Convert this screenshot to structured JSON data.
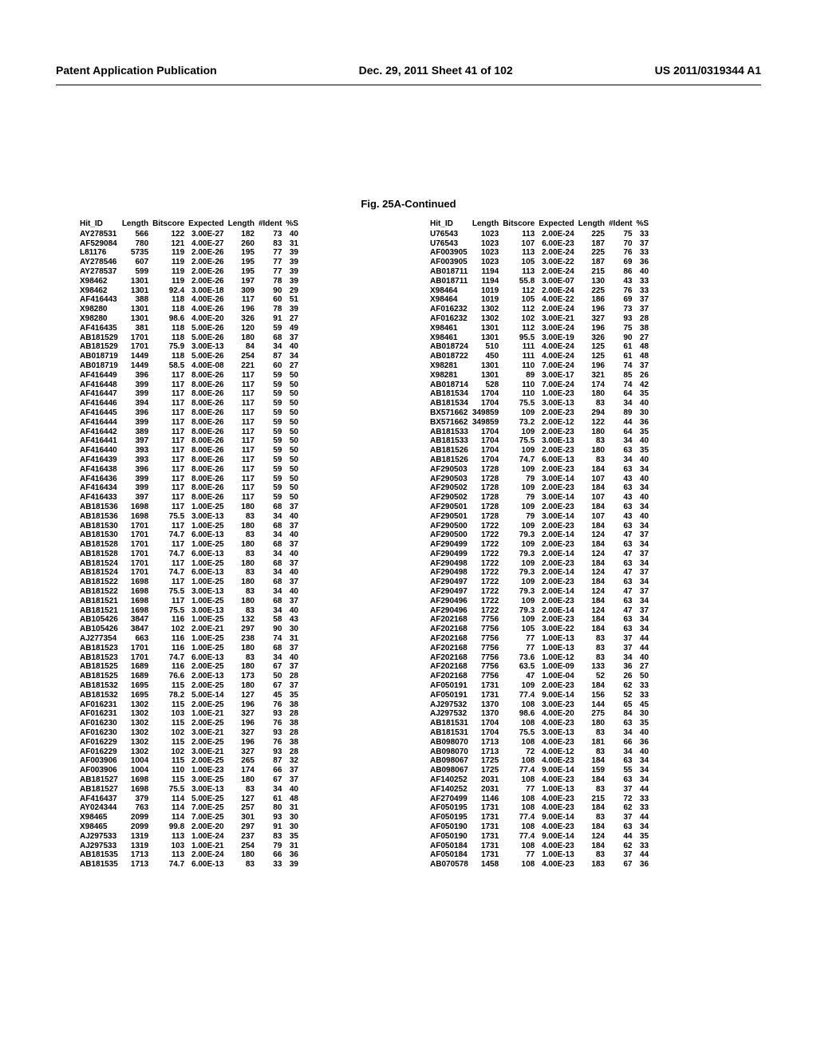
{
  "header": {
    "left": "Patent Application Publication",
    "mid": "Dec. 29, 2011  Sheet 41 of 102",
    "right": "US 2011/0319344 A1"
  },
  "caption": "Fig. 25A-Continued",
  "columns": [
    "Hit_ID",
    "Length",
    "Bitscore",
    "Expected",
    "Length",
    "#Ident",
    "%S"
  ],
  "left_rows": [
    [
      "AY278531",
      "566",
      "122",
      "3.00E-27",
      "182",
      "73",
      "40"
    ],
    [
      "AF529084",
      "780",
      "121",
      "4.00E-27",
      "260",
      "83",
      "31"
    ],
    [
      "L81176",
      "5735",
      "119",
      "2.00E-26",
      "195",
      "77",
      "39"
    ],
    [
      "AY278546",
      "607",
      "119",
      "2.00E-26",
      "195",
      "77",
      "39"
    ],
    [
      "AY278537",
      "599",
      "119",
      "2.00E-26",
      "195",
      "77",
      "39"
    ],
    [
      "X98462",
      "1301",
      "119",
      "2.00E-26",
      "197",
      "78",
      "39"
    ],
    [
      "X98462",
      "1301",
      "92.4",
      "3.00E-18",
      "309",
      "90",
      "29"
    ],
    [
      "AF416443",
      "388",
      "118",
      "4.00E-26",
      "117",
      "60",
      "51"
    ],
    [
      "X98280",
      "1301",
      "118",
      "4.00E-26",
      "196",
      "78",
      "39"
    ],
    [
      "X98280",
      "1301",
      "98.6",
      "4.00E-20",
      "326",
      "91",
      "27"
    ],
    [
      "AF416435",
      "381",
      "118",
      "5.00E-26",
      "120",
      "59",
      "49"
    ],
    [
      "AB181529",
      "1701",
      "118",
      "5.00E-26",
      "180",
      "68",
      "37"
    ],
    [
      "AB181529",
      "1701",
      "75.9",
      "3.00E-13",
      "84",
      "34",
      "40"
    ],
    [
      "AB018719",
      "1449",
      "118",
      "5.00E-26",
      "254",
      "87",
      "34"
    ],
    [
      "AB018719",
      "1449",
      "58.5",
      "4.00E-08",
      "221",
      "60",
      "27"
    ],
    [
      "AF416449",
      "396",
      "117",
      "8.00E-26",
      "117",
      "59",
      "50"
    ],
    [
      "AF416448",
      "399",
      "117",
      "8.00E-26",
      "117",
      "59",
      "50"
    ],
    [
      "AF416447",
      "399",
      "117",
      "8.00E-26",
      "117",
      "59",
      "50"
    ],
    [
      "AF416446",
      "394",
      "117",
      "8.00E-26",
      "117",
      "59",
      "50"
    ],
    [
      "AF416445",
      "396",
      "117",
      "8.00E-26",
      "117",
      "59",
      "50"
    ],
    [
      "AF416444",
      "399",
      "117",
      "8.00E-26",
      "117",
      "59",
      "50"
    ],
    [
      "AF416442",
      "389",
      "117",
      "8.00E-26",
      "117",
      "59",
      "50"
    ],
    [
      "AF416441",
      "397",
      "117",
      "8.00E-26",
      "117",
      "59",
      "50"
    ],
    [
      "AF416440",
      "393",
      "117",
      "8.00E-26",
      "117",
      "59",
      "50"
    ],
    [
      "AF416439",
      "393",
      "117",
      "8.00E-26",
      "117",
      "59",
      "50"
    ],
    [
      "AF416438",
      "396",
      "117",
      "8.00E-26",
      "117",
      "59",
      "50"
    ],
    [
      "AF416436",
      "399",
      "117",
      "8.00E-26",
      "117",
      "59",
      "50"
    ],
    [
      "AF416434",
      "399",
      "117",
      "8.00E-26",
      "117",
      "59",
      "50"
    ],
    [
      "AF416433",
      "397",
      "117",
      "8.00E-26",
      "117",
      "59",
      "50"
    ],
    [
      "AB181536",
      "1698",
      "117",
      "1.00E-25",
      "180",
      "68",
      "37"
    ],
    [
      "AB181536",
      "1698",
      "75.5",
      "3.00E-13",
      "83",
      "34",
      "40"
    ],
    [
      "AB181530",
      "1701",
      "117",
      "1.00E-25",
      "180",
      "68",
      "37"
    ],
    [
      "AB181530",
      "1701",
      "74.7",
      "6.00E-13",
      "83",
      "34",
      "40"
    ],
    [
      "AB181528",
      "1701",
      "117",
      "1.00E-25",
      "180",
      "68",
      "37"
    ],
    [
      "AB181528",
      "1701",
      "74.7",
      "6.00E-13",
      "83",
      "34",
      "40"
    ],
    [
      "AB181524",
      "1701",
      "117",
      "1.00E-25",
      "180",
      "68",
      "37"
    ],
    [
      "AB181524",
      "1701",
      "74.7",
      "6.00E-13",
      "83",
      "34",
      "40"
    ],
    [
      "AB181522",
      "1698",
      "117",
      "1.00E-25",
      "180",
      "68",
      "37"
    ],
    [
      "AB181522",
      "1698",
      "75.5",
      "3.00E-13",
      "83",
      "34",
      "40"
    ],
    [
      "AB181521",
      "1698",
      "117",
      "1.00E-25",
      "180",
      "68",
      "37"
    ],
    [
      "AB181521",
      "1698",
      "75.5",
      "3.00E-13",
      "83",
      "34",
      "40"
    ],
    [
      "AB105426",
      "3847",
      "116",
      "1.00E-25",
      "132",
      "58",
      "43"
    ],
    [
      "AB105426",
      "3847",
      "102",
      "2.00E-21",
      "297",
      "90",
      "30"
    ],
    [
      "AJ277354",
      "663",
      "116",
      "1.00E-25",
      "238",
      "74",
      "31"
    ],
    [
      "AB181523",
      "1701",
      "116",
      "1.00E-25",
      "180",
      "68",
      "37"
    ],
    [
      "AB181523",
      "1701",
      "74.7",
      "6.00E-13",
      "83",
      "34",
      "40"
    ],
    [
      "AB181525",
      "1689",
      "116",
      "2.00E-25",
      "180",
      "67",
      "37"
    ],
    [
      "AB181525",
      "1689",
      "76.6",
      "2.00E-13",
      "173",
      "50",
      "28"
    ],
    [
      "AB181532",
      "1695",
      "115",
      "2.00E-25",
      "180",
      "67",
      "37"
    ],
    [
      "AB181532",
      "1695",
      "78.2",
      "5.00E-14",
      "127",
      "45",
      "35"
    ],
    [
      "AF016231",
      "1302",
      "115",
      "2.00E-25",
      "196",
      "76",
      "38"
    ],
    [
      "AF016231",
      "1302",
      "103",
      "1.00E-21",
      "327",
      "93",
      "28"
    ],
    [
      "AF016230",
      "1302",
      "115",
      "2.00E-25",
      "196",
      "76",
      "38"
    ],
    [
      "AF016230",
      "1302",
      "102",
      "3.00E-21",
      "327",
      "93",
      "28"
    ],
    [
      "AF016229",
      "1302",
      "115",
      "2.00E-25",
      "196",
      "76",
      "38"
    ],
    [
      "AF016229",
      "1302",
      "102",
      "3.00E-21",
      "327",
      "93",
      "28"
    ],
    [
      "AF003906",
      "1004",
      "115",
      "2.00E-25",
      "265",
      "87",
      "32"
    ],
    [
      "AF003906",
      "1004",
      "110",
      "1.00E-23",
      "174",
      "66",
      "37"
    ],
    [
      "AB181527",
      "1698",
      "115",
      "3.00E-25",
      "180",
      "67",
      "37"
    ],
    [
      "AB181527",
      "1698",
      "75.5",
      "3.00E-13",
      "83",
      "34",
      "40"
    ],
    [
      "AF416437",
      "379",
      "114",
      "5.00E-25",
      "127",
      "61",
      "48"
    ],
    [
      "AY024344",
      "763",
      "114",
      "7.00E-25",
      "257",
      "80",
      "31"
    ],
    [
      "X98465",
      "2099",
      "114",
      "7.00E-25",
      "301",
      "93",
      "30"
    ],
    [
      "X98465",
      "2099",
      "99.8",
      "2.00E-20",
      "297",
      "91",
      "30"
    ],
    [
      "AJ297533",
      "1319",
      "113",
      "1.00E-24",
      "237",
      "83",
      "35"
    ],
    [
      "AJ297533",
      "1319",
      "103",
      "1.00E-21",
      "254",
      "79",
      "31"
    ],
    [
      "AB181535",
      "1713",
      "113",
      "2.00E-24",
      "180",
      "66",
      "36"
    ],
    [
      "AB181535",
      "1713",
      "74.7",
      "6.00E-13",
      "83",
      "33",
      "39"
    ]
  ],
  "right_rows": [
    [
      "U76543",
      "1023",
      "113",
      "2.00E-24",
      "225",
      "75",
      "33"
    ],
    [
      "U76543",
      "1023",
      "107",
      "6.00E-23",
      "187",
      "70",
      "37"
    ],
    [
      "AF003905",
      "1023",
      "113",
      "2.00E-24",
      "225",
      "76",
      "33"
    ],
    [
      "AF003905",
      "1023",
      "105",
      "3.00E-22",
      "187",
      "69",
      "36"
    ],
    [
      "AB018711",
      "1194",
      "113",
      "2.00E-24",
      "215",
      "86",
      "40"
    ],
    [
      "AB018711",
      "1194",
      "55.8",
      "3.00E-07",
      "130",
      "43",
      "33"
    ],
    [
      "X98464",
      "1019",
      "112",
      "2.00E-24",
      "225",
      "76",
      "33"
    ],
    [
      "X98464",
      "1019",
      "105",
      "4.00E-22",
      "186",
      "69",
      "37"
    ],
    [
      "AF016232",
      "1302",
      "112",
      "2.00E-24",
      "196",
      "73",
      "37"
    ],
    [
      "AF016232",
      "1302",
      "102",
      "3.00E-21",
      "327",
      "93",
      "28"
    ],
    [
      "X98461",
      "1301",
      "112",
      "3.00E-24",
      "196",
      "75",
      "38"
    ],
    [
      "X98461",
      "1301",
      "95.5",
      "3.00E-19",
      "326",
      "90",
      "27"
    ],
    [
      "AB018724",
      "510",
      "111",
      "4.00E-24",
      "125",
      "61",
      "48"
    ],
    [
      "AB018722",
      "450",
      "111",
      "4.00E-24",
      "125",
      "61",
      "48"
    ],
    [
      "X98281",
      "1301",
      "110",
      "7.00E-24",
      "196",
      "74",
      "37"
    ],
    [
      "X98281",
      "1301",
      "89",
      "3.00E-17",
      "321",
      "85",
      "26"
    ],
    [
      "AB018714",
      "528",
      "110",
      "7.00E-24",
      "174",
      "74",
      "42"
    ],
    [
      "AB181534",
      "1704",
      "110",
      "1.00E-23",
      "180",
      "64",
      "35"
    ],
    [
      "AB181534",
      "1704",
      "75.5",
      "3.00E-13",
      "83",
      "34",
      "40"
    ],
    [
      "BX571662",
      "349859",
      "109",
      "2.00E-23",
      "294",
      "89",
      "30"
    ],
    [
      "BX571662",
      "349859",
      "73.2",
      "2.00E-12",
      "122",
      "44",
      "36"
    ],
    [
      "AB181533",
      "1704",
      "109",
      "2.00E-23",
      "180",
      "64",
      "35"
    ],
    [
      "AB181533",
      "1704",
      "75.5",
      "3.00E-13",
      "83",
      "34",
      "40"
    ],
    [
      "AB181526",
      "1704",
      "109",
      "2.00E-23",
      "180",
      "63",
      "35"
    ],
    [
      "AB181526",
      "1704",
      "74.7",
      "6.00E-13",
      "83",
      "34",
      "40"
    ],
    [
      "AF290503",
      "1728",
      "109",
      "2.00E-23",
      "184",
      "63",
      "34"
    ],
    [
      "AF290503",
      "1728",
      "79",
      "3.00E-14",
      "107",
      "43",
      "40"
    ],
    [
      "AF290502",
      "1728",
      "109",
      "2.00E-23",
      "184",
      "63",
      "34"
    ],
    [
      "AF290502",
      "1728",
      "79",
      "3.00E-14",
      "107",
      "43",
      "40"
    ],
    [
      "AF290501",
      "1728",
      "109",
      "2.00E-23",
      "184",
      "63",
      "34"
    ],
    [
      "AF290501",
      "1728",
      "79",
      "3.00E-14",
      "107",
      "43",
      "40"
    ],
    [
      "AF290500",
      "1722",
      "109",
      "2.00E-23",
      "184",
      "63",
      "34"
    ],
    [
      "AF290500",
      "1722",
      "79.3",
      "2.00E-14",
      "124",
      "47",
      "37"
    ],
    [
      "AF290499",
      "1722",
      "109",
      "2.00E-23",
      "184",
      "63",
      "34"
    ],
    [
      "AF290499",
      "1722",
      "79.3",
      "2.00E-14",
      "124",
      "47",
      "37"
    ],
    [
      "AF290498",
      "1722",
      "109",
      "2.00E-23",
      "184",
      "63",
      "34"
    ],
    [
      "AF290498",
      "1722",
      "79.3",
      "2.00E-14",
      "124",
      "47",
      "37"
    ],
    [
      "AF290497",
      "1722",
      "109",
      "2.00E-23",
      "184",
      "63",
      "34"
    ],
    [
      "AF290497",
      "1722",
      "79.3",
      "2.00E-14",
      "124",
      "47",
      "37"
    ],
    [
      "AF290496",
      "1722",
      "109",
      "2.00E-23",
      "184",
      "63",
      "34"
    ],
    [
      "AF290496",
      "1722",
      "79.3",
      "2.00E-14",
      "124",
      "47",
      "37"
    ],
    [
      "AF202168",
      "7756",
      "109",
      "2.00E-23",
      "184",
      "63",
      "34"
    ],
    [
      "AF202168",
      "7756",
      "105",
      "3.00E-22",
      "184",
      "63",
      "34"
    ],
    [
      "AF202168",
      "7756",
      "77",
      "1.00E-13",
      "83",
      "37",
      "44"
    ],
    [
      "AF202168",
      "7756",
      "77",
      "1.00E-13",
      "83",
      "37",
      "44"
    ],
    [
      "AF202168",
      "7756",
      "73.6",
      "1.00E-12",
      "83",
      "34",
      "40"
    ],
    [
      "AF202168",
      "7756",
      "63.5",
      "1.00E-09",
      "133",
      "36",
      "27"
    ],
    [
      "AF202168",
      "7756",
      "47",
      "1.00E-04",
      "52",
      "26",
      "50"
    ],
    [
      "AF050191",
      "1731",
      "109",
      "2.00E-23",
      "184",
      "62",
      "33"
    ],
    [
      "AF050191",
      "1731",
      "77.4",
      "9.00E-14",
      "156",
      "52",
      "33"
    ],
    [
      "AJ297532",
      "1370",
      "108",
      "3.00E-23",
      "144",
      "65",
      "45"
    ],
    [
      "AJ297532",
      "1370",
      "98.6",
      "4.00E-20",
      "275",
      "84",
      "30"
    ],
    [
      "AB181531",
      "1704",
      "108",
      "4.00E-23",
      "180",
      "63",
      "35"
    ],
    [
      "AB181531",
      "1704",
      "75.5",
      "3.00E-13",
      "83",
      "34",
      "40"
    ],
    [
      "AB098070",
      "1713",
      "108",
      "4.00E-23",
      "181",
      "66",
      "36"
    ],
    [
      "AB098070",
      "1713",
      "72",
      "4.00E-12",
      "83",
      "34",
      "40"
    ],
    [
      "AB098067",
      "1725",
      "108",
      "4.00E-23",
      "184",
      "63",
      "34"
    ],
    [
      "AB098067",
      "1725",
      "77.4",
      "9.00E-14",
      "159",
      "55",
      "34"
    ],
    [
      "AF140252",
      "2031",
      "108",
      "4.00E-23",
      "184",
      "63",
      "34"
    ],
    [
      "AF140252",
      "2031",
      "77",
      "1.00E-13",
      "83",
      "37",
      "44"
    ],
    [
      "AF270499",
      "1146",
      "108",
      "4.00E-23",
      "215",
      "72",
      "33"
    ],
    [
      "AF050195",
      "1731",
      "108",
      "4.00E-23",
      "184",
      "62",
      "33"
    ],
    [
      "AF050195",
      "1731",
      "77.4",
      "9.00E-14",
      "83",
      "37",
      "44"
    ],
    [
      "AF050190",
      "1731",
      "108",
      "4.00E-23",
      "184",
      "63",
      "34"
    ],
    [
      "AF050190",
      "1731",
      "77.4",
      "9.00E-14",
      "124",
      "44",
      "35"
    ],
    [
      "AF050184",
      "1731",
      "108",
      "4.00E-23",
      "184",
      "62",
      "33"
    ],
    [
      "AF050184",
      "1731",
      "77",
      "1.00E-13",
      "83",
      "37",
      "44"
    ],
    [
      "AB070578",
      "1458",
      "108",
      "4.00E-23",
      "183",
      "67",
      "36"
    ]
  ]
}
